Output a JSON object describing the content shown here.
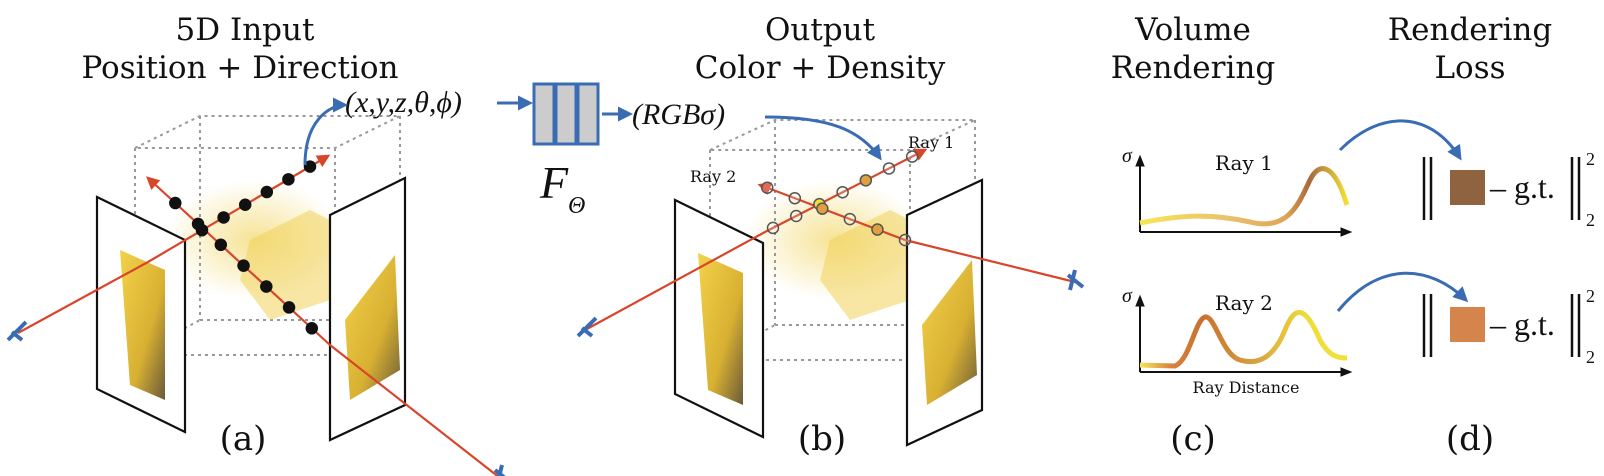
{
  "titles": {
    "a_line1": "5D Input",
    "a_line2": "Position + Direction",
    "b_line1": "Output",
    "b_line2": "Color + Density",
    "c_line1": "Volume",
    "c_line2": "Rendering",
    "d_line1": "Rendering",
    "d_line2": "Loss"
  },
  "captions": {
    "a": "(a)",
    "b": "(b)",
    "c": "(c)",
    "d": "(d)"
  },
  "input_tuple": "(x,y,z,θ,ϕ)",
  "network": {
    "label": "F",
    "subscript": "Θ"
  },
  "output_tuple": "(RGBσ)",
  "ray_labels": {
    "ray1": "Ray 1",
    "ray2": "Ray 2"
  },
  "plots": {
    "y_label": "σ",
    "x_label": "Ray Distance",
    "plot1_title": "Ray 1",
    "plot2_title": "Ray 2"
  },
  "loss": {
    "minus_gt": "– g.t.",
    "superscript": "2",
    "subscript": "2",
    "color1": "#8f6340",
    "color2": "#d5854b"
  },
  "colors": {
    "ray": "#d9452b",
    "arrow": "#3a6cb3",
    "network_fill": "#cccccc",
    "sample_yellow": "#f2e03a",
    "sample_orange": "#e0a040"
  }
}
